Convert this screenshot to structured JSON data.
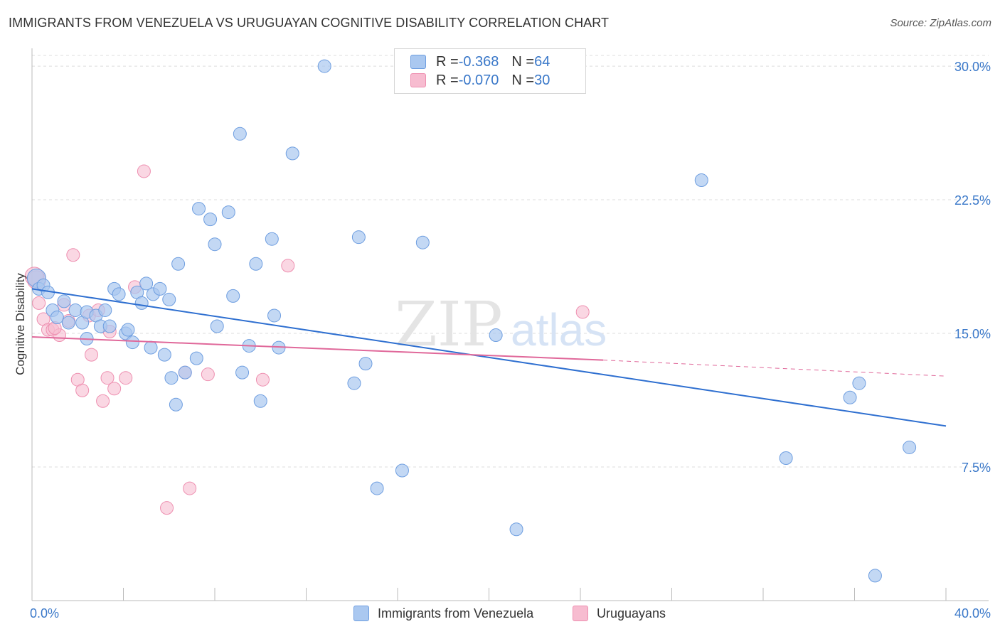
{
  "title": "IMMIGRANTS FROM VENEZUELA VS URUGUAYAN COGNITIVE DISABILITY CORRELATION CHART",
  "source": "Source: ZipAtlas.com",
  "watermark": {
    "zip": "ZIP",
    "atlas": "atlas"
  },
  "colors": {
    "blue_fill": "#aac8f0",
    "blue_stroke": "#6e9ee0",
    "blue_line": "#2e6fd0",
    "pink_fill": "#f7bcd0",
    "pink_stroke": "#ee8fb0",
    "pink_line": "#e0689a",
    "axis_label": "#3a78c9",
    "grid": "#dddddd"
  },
  "legend": {
    "rows": [
      {
        "r_label": "R = ",
        "r_value": "-0.368",
        "n_label": "N = ",
        "n_value": "64"
      },
      {
        "r_label": "R = ",
        "r_value": "-0.070",
        "n_label": "N = ",
        "n_value": "30"
      }
    ]
  },
  "bottom_legend": {
    "series1": "Immigrants from Venezuela",
    "series2": "Uruguayans"
  },
  "chart_data": {
    "type": "scatter",
    "title": "IMMIGRANTS FROM VENEZUELA VS URUGUAYAN COGNITIVE DISABILITY CORRELATION CHART",
    "xlabel": "",
    "ylabel": "Cognitive Disability",
    "xlim": [
      0,
      40
    ],
    "ylim": [
      0,
      31
    ],
    "x_tick_labels": [
      "0.0%",
      "40.0%"
    ],
    "y_ticks": [
      7.5,
      15.0,
      22.5,
      30.0
    ],
    "y_tick_labels": [
      "7.5%",
      "15.0%",
      "22.5%",
      "30.0%"
    ],
    "grid": true,
    "series": [
      {
        "name": "Immigrants from Venezuela",
        "r": -0.368,
        "n": 64,
        "trend": {
          "x": [
            0,
            40
          ],
          "y": [
            17.5,
            9.8
          ]
        },
        "points": [
          [
            0.2,
            18.1
          ],
          [
            0.3,
            17.5
          ],
          [
            0.5,
            17.7
          ],
          [
            0.7,
            17.3
          ],
          [
            0.9,
            16.3
          ],
          [
            1.1,
            15.9
          ],
          [
            1.4,
            16.8
          ],
          [
            1.6,
            15.6
          ],
          [
            1.9,
            16.3
          ],
          [
            2.2,
            15.6
          ],
          [
            2.4,
            16.2
          ],
          [
            2.4,
            14.7
          ],
          [
            2.8,
            16.0
          ],
          [
            3.0,
            15.4
          ],
          [
            3.2,
            16.3
          ],
          [
            3.4,
            15.4
          ],
          [
            3.6,
            17.5
          ],
          [
            3.8,
            17.2
          ],
          [
            4.1,
            15.0
          ],
          [
            4.2,
            15.2
          ],
          [
            4.4,
            14.5
          ],
          [
            4.6,
            17.3
          ],
          [
            4.8,
            16.7
          ],
          [
            5.0,
            17.8
          ],
          [
            5.2,
            14.2
          ],
          [
            5.3,
            17.2
          ],
          [
            5.6,
            17.5
          ],
          [
            5.8,
            13.8
          ],
          [
            6.0,
            16.9
          ],
          [
            6.1,
            12.5
          ],
          [
            6.3,
            11.0
          ],
          [
            6.4,
            18.9
          ],
          [
            6.7,
            12.8
          ],
          [
            7.2,
            13.6
          ],
          [
            7.3,
            22.0
          ],
          [
            7.8,
            21.4
          ],
          [
            8.0,
            20.0
          ],
          [
            8.1,
            15.4
          ],
          [
            8.6,
            21.8
          ],
          [
            8.8,
            17.1
          ],
          [
            9.1,
            26.2
          ],
          [
            9.2,
            12.8
          ],
          [
            9.5,
            14.3
          ],
          [
            9.8,
            18.9
          ],
          [
            10.0,
            11.2
          ],
          [
            10.5,
            20.3
          ],
          [
            10.6,
            16.0
          ],
          [
            10.8,
            14.2
          ],
          [
            11.4,
            25.1
          ],
          [
            12.8,
            30.0
          ],
          [
            14.1,
            12.2
          ],
          [
            14.3,
            20.4
          ],
          [
            14.6,
            13.3
          ],
          [
            15.1,
            6.3
          ],
          [
            16.2,
            7.3
          ],
          [
            17.1,
            20.1
          ],
          [
            20.3,
            14.9
          ],
          [
            21.2,
            4.0
          ],
          [
            29.3,
            23.6
          ],
          [
            35.8,
            11.4
          ],
          [
            36.2,
            12.2
          ],
          [
            38.4,
            8.6
          ],
          [
            36.9,
            1.4
          ],
          [
            33.0,
            8.0
          ]
        ]
      },
      {
        "name": "Uruguayans",
        "r": -0.07,
        "n": 30,
        "trend": {
          "x": [
            0,
            25
          ],
          "y": [
            14.8,
            13.5
          ],
          "dashed_to": {
            "x": 40,
            "y": 12.6
          }
        },
        "points": [
          [
            0.2,
            18.0
          ],
          [
            0.3,
            16.7
          ],
          [
            0.5,
            15.8
          ],
          [
            0.7,
            15.2
          ],
          [
            0.9,
            15.2
          ],
          [
            1.2,
            14.9
          ],
          [
            1.4,
            16.6
          ],
          [
            1.6,
            15.7
          ],
          [
            1.8,
            19.4
          ],
          [
            2.0,
            12.4
          ],
          [
            2.2,
            11.8
          ],
          [
            2.5,
            16.0
          ],
          [
            2.6,
            13.8
          ],
          [
            2.9,
            16.3
          ],
          [
            3.1,
            11.2
          ],
          [
            3.3,
            12.5
          ],
          [
            3.4,
            15.1
          ],
          [
            3.6,
            11.9
          ],
          [
            4.1,
            12.5
          ],
          [
            4.5,
            17.6
          ],
          [
            4.9,
            24.1
          ],
          [
            5.9,
            5.2
          ],
          [
            6.7,
            12.8
          ],
          [
            6.9,
            6.3
          ],
          [
            7.7,
            12.7
          ],
          [
            10.1,
            12.4
          ],
          [
            11.2,
            18.8
          ],
          [
            24.1,
            16.2
          ],
          [
            0.1,
            18.2
          ],
          [
            1.0,
            15.3
          ]
        ]
      }
    ]
  }
}
